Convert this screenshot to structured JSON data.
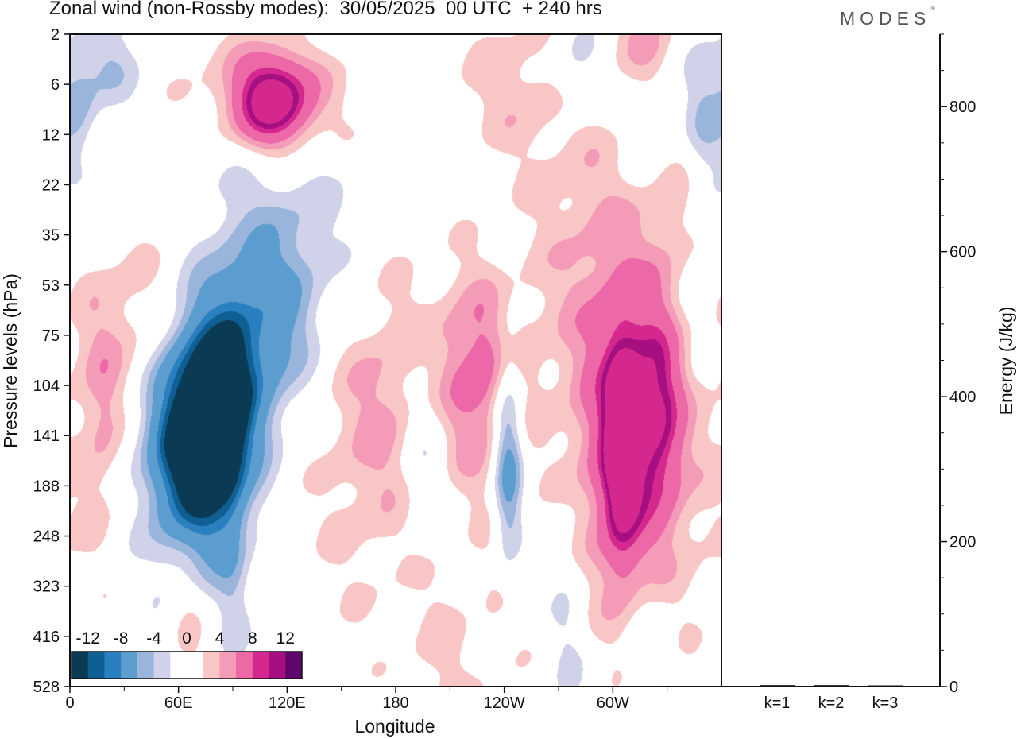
{
  "title": "Zonal wind (non-Rossby modes):  30/05/2025  00 UTC  + 240 hrs",
  "brand": "MODES",
  "brand_mark": "®",
  "palette": {
    "neg": [
      "#0b3a55",
      "#0f5f93",
      "#2a7fbe",
      "#5c9dcf",
      "#9ab5dc",
      "#cfd2e8"
    ],
    "pos": [
      "#f9c6c6",
      "#f49bb8",
      "#ec68a6",
      "#d4288f",
      "#a50f80",
      "#5e076a"
    ],
    "line": "#111111"
  },
  "chart_data": [
    {
      "type": "heatmap",
      "title": "Zonal wind (non-Rossby modes):  30/05/2025  00 UTC  + 240 hrs",
      "xlabel": "Longitude",
      "ylabel": "Pressure levels (hPa)",
      "x_ticks": [
        "0",
        "60E",
        "120E",
        "180",
        "120W",
        "60W"
      ],
      "x_tick_degrees": [
        0,
        60,
        120,
        180,
        240,
        300
      ],
      "xlim": [
        0,
        360
      ],
      "y_ticks": [
        "2",
        "6",
        "12",
        "22",
        "35",
        "53",
        "75",
        "104",
        "141",
        "188",
        "248",
        "323",
        "416",
        "528"
      ],
      "colorbar": {
        "labels": [
          "-12",
          "-8",
          "-4",
          "0",
          "4",
          "8",
          "12"
        ],
        "levels": [
          -14,
          -12,
          -10,
          -8,
          -6,
          -4,
          -2,
          0,
          2,
          4,
          6,
          8,
          10,
          12,
          14
        ]
      },
      "features": [
        {
          "lon": 73,
          "level": 141,
          "value": -16,
          "sx": 16,
          "sy": 1.6
        },
        {
          "lon": 60,
          "level": 141,
          "value": -8,
          "sx": 18,
          "sy": 1.5
        },
        {
          "lon": 88,
          "level": 104,
          "value": -9,
          "sx": 14,
          "sy": 1.4
        },
        {
          "lon": 110,
          "level": 75,
          "value": -5,
          "sx": 16,
          "sy": 1.3
        },
        {
          "lon": 125,
          "level": 53,
          "value": -2.5,
          "sx": 20,
          "sy": 1.4
        },
        {
          "lon": 90,
          "level": 248,
          "value": -2.5,
          "sx": 6,
          "sy": 3.0
        },
        {
          "lon": 242,
          "level": 160,
          "value": -10,
          "sx": 6,
          "sy": 1.6
        },
        {
          "lon": 197,
          "level": 141,
          "value": -5,
          "sx": 10,
          "sy": 1.4
        },
        {
          "lon": 20,
          "level": 4,
          "value": -4,
          "sx": 12,
          "sy": 0.7
        },
        {
          "lon": 5,
          "level": 8,
          "value": -3.5,
          "sx": 7,
          "sy": 0.8
        },
        {
          "lon": 280,
          "level": 4,
          "value": -4,
          "sx": 10,
          "sy": 0.7
        },
        {
          "lon": 325,
          "level": 8,
          "value": -5,
          "sx": 14,
          "sy": 1.0
        },
        {
          "lon": 350,
          "level": 10,
          "value": -3.5,
          "sx": 8,
          "sy": 1.2
        },
        {
          "lon": 110,
          "level": 25,
          "value": -2.5,
          "sx": 35,
          "sy": 1.6
        },
        {
          "lon": 140,
          "level": 6,
          "value": -2.5,
          "sx": 30,
          "sy": 1.0
        },
        {
          "lon": 305,
          "level": 150,
          "value": 14,
          "sx": 7,
          "sy": 1.4
        },
        {
          "lon": 305,
          "level": 141,
          "value": 7,
          "sx": 18,
          "sy": 2.2
        },
        {
          "lon": 325,
          "level": 120,
          "value": 8,
          "sx": 9,
          "sy": 1.3
        },
        {
          "lon": 325,
          "level": 141,
          "value": 4,
          "sx": 30,
          "sy": 2.8
        },
        {
          "lon": 228,
          "level": 96,
          "value": 6,
          "sx": 18,
          "sy": 1.4
        },
        {
          "lon": 195,
          "level": 104,
          "value": 3,
          "sx": 30,
          "sy": 1.6
        },
        {
          "lon": 165,
          "level": 160,
          "value": 3,
          "sx": 24,
          "sy": 2.4
        },
        {
          "lon": 40,
          "level": 75,
          "value": 4,
          "sx": 25,
          "sy": 1.5
        },
        {
          "lon": 18,
          "level": 141,
          "value": 3,
          "sx": 8,
          "sy": 1.5
        },
        {
          "lon": 120,
          "level": 7,
          "value": 7,
          "sx": 34,
          "sy": 0.9
        },
        {
          "lon": 112,
          "level": 7.5,
          "value": 14,
          "sx": 14,
          "sy": 0.6
        },
        {
          "lon": 320,
          "level": 3,
          "value": 6,
          "sx": 12,
          "sy": 0.9
        },
        {
          "lon": 245,
          "level": 6,
          "value": 3,
          "sx": 25,
          "sy": 1.1
        },
        {
          "lon": 285,
          "level": 35,
          "value": 3,
          "sx": 24,
          "sy": 2.2
        },
        {
          "lon": 335,
          "level": 22,
          "value": 3.5,
          "sx": 12,
          "sy": 1.4
        },
        {
          "lon": 240,
          "level": 330,
          "value": 2.5,
          "sx": 10,
          "sy": 1.8
        },
        {
          "lon": 205,
          "level": 480,
          "value": 2.5,
          "sx": 14,
          "sy": 1.5
        },
        {
          "lon": 65,
          "level": 420,
          "value": 3,
          "sx": 8,
          "sy": 1.6
        },
        {
          "lon": 275,
          "level": 430,
          "value": -2.5,
          "sx": 8,
          "sy": 1.8
        },
        {
          "lon": 320,
          "level": 480,
          "value": -2.5,
          "sx": 10,
          "sy": 1.6
        },
        {
          "lon": 345,
          "level": 60,
          "value": -2.5,
          "sx": 12,
          "sy": 2.0
        }
      ]
    },
    {
      "type": "bar",
      "ylabel": "Energy (J/kg)",
      "categories": [
        "k=1",
        "k=2",
        "k=3"
      ],
      "values": [
        2,
        2,
        1.5
      ],
      "ylim": [
        0,
        900
      ],
      "y_ticks": [
        0,
        200,
        400,
        600,
        800
      ]
    }
  ]
}
